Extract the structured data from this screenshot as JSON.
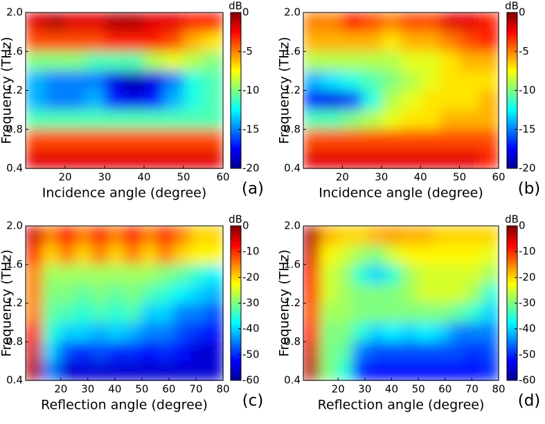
{
  "chart_data": [
    {
      "type": "heatmap",
      "colormap": "jet",
      "x_label": "Incidence angle (degree)",
      "y_label": "Frequency (THz)",
      "panel_label": "(a)",
      "colorbar_label": "dB",
      "xlim": [
        10,
        60
      ],
      "xticks": [
        20,
        30,
        40,
        50,
        60
      ],
      "ylim": [
        0.4,
        2.0
      ],
      "yticks": [
        {
          "value": 2.0,
          "label": "2.0"
        },
        1.6,
        1.2,
        0.8,
        0.4
      ],
      "zlim": [
        -20,
        0
      ],
      "zticks": [
        0,
        -5,
        -10,
        -15,
        -20
      ],
      "z": [
        [
          -2,
          -1,
          -2,
          -2,
          -1,
          -1,
          -2,
          -2,
          -3,
          -3
        ],
        [
          -4,
          -4,
          -4,
          -4,
          -3,
          -3,
          -3,
          -4,
          -6,
          -7
        ],
        [
          -10,
          -10,
          -10,
          -11,
          -11,
          -11,
          -9,
          -8,
          -9,
          -10
        ],
        [
          -14,
          -15,
          -15,
          -15,
          -18,
          -19,
          -18,
          -15,
          -12,
          -11
        ],
        [
          -14,
          -15,
          -15,
          -14,
          -17,
          -18,
          -17,
          -14,
          -12,
          -11
        ],
        [
          -11,
          -11,
          -11,
          -11,
          -11,
          -11,
          -11,
          -11,
          -11,
          -11
        ],
        [
          -4,
          -4,
          -4,
          -4,
          -4,
          -4,
          -4,
          -4,
          -4,
          -4
        ],
        [
          -2,
          -2,
          -2,
          -2,
          -2,
          -2,
          -2,
          -2,
          -2,
          -2
        ]
      ]
    },
    {
      "type": "heatmap",
      "colormap": "jet",
      "x_label": "Incidence angle (degree)",
      "y_label": "Frequency (THz)",
      "panel_label": "(b)",
      "colorbar_label": "dB",
      "xlim": [
        10,
        60
      ],
      "xticks": [
        20,
        30,
        40,
        50,
        60
      ],
      "ylim": [
        0.4,
        2.0
      ],
      "yticks": [
        {
          "value": 2.0,
          "label": "2.0"
        },
        1.6,
        1.2,
        0.8,
        0.4
      ],
      "zlim": [
        -20,
        0
      ],
      "zticks": [
        0,
        -5,
        -10,
        -15,
        -20
      ],
      "z": [
        [
          -5,
          -5,
          -3,
          -4,
          -5,
          -4,
          -4,
          -2,
          -2,
          -3
        ],
        [
          -6,
          -6,
          -6,
          -6,
          -7,
          -6,
          -6,
          -5,
          -4,
          -3
        ],
        [
          -9,
          -9,
          -9,
          -9,
          -9,
          -8,
          -8,
          -7,
          -6,
          -6
        ],
        [
          -14,
          -13,
          -12,
          -11,
          -10,
          -9,
          -8,
          -7,
          -7,
          -7
        ],
        [
          -17,
          -18,
          -16,
          -12,
          -9,
          -8,
          -7,
          -7,
          -7,
          -6
        ],
        [
          -11,
          -11,
          -10,
          -9,
          -8,
          -7,
          -7,
          -6,
          -6,
          -6
        ],
        [
          -4,
          -4,
          -4,
          -4,
          -4,
          -4,
          -4,
          -4,
          -4,
          -4
        ],
        [
          -2,
          -2,
          -2,
          -2,
          -2,
          -2,
          -2,
          -2,
          -2,
          -3
        ]
      ]
    },
    {
      "type": "heatmap",
      "colormap": "jet",
      "x_label": "Reflection angle (degree)",
      "y_label": "Frequency (THz)",
      "panel_label": "(c)",
      "colorbar_label": "dB",
      "xlim": [
        7,
        80
      ],
      "xticks": [
        20,
        30,
        40,
        50,
        60,
        70,
        80
      ],
      "ylim": [
        0.4,
        2.0
      ],
      "yticks": [
        {
          "value": 2.0,
          "label": "2.0"
        },
        1.6,
        1.2,
        0.8,
        0.4
      ],
      "zlim": [
        -60,
        0
      ],
      "zticks": [
        0,
        -10,
        -20,
        -30,
        -40,
        -50,
        -60
      ],
      "z": [
        [
          -5,
          -15,
          -8,
          -15,
          -10,
          -15,
          -8,
          -15,
          -10,
          -15,
          -20,
          -20
        ],
        [
          -10,
          -20,
          -15,
          -20,
          -15,
          -20,
          -15,
          -20,
          -15,
          -20,
          -22,
          -22
        ],
        [
          -15,
          -28,
          -28,
          -28,
          -28,
          -28,
          -28,
          -28,
          -30,
          -32,
          -35,
          -38
        ],
        [
          -15,
          -30,
          -30,
          -32,
          -30,
          -32,
          -30,
          -33,
          -35,
          -38,
          -40,
          -42
        ],
        [
          -15,
          -32,
          -33,
          -35,
          -33,
          -35,
          -33,
          -40,
          -40,
          -45,
          -45,
          -48
        ],
        [
          -8,
          -35,
          -40,
          -40,
          -42,
          -40,
          -42,
          -45,
          -45,
          -48,
          -50,
          -52
        ],
        [
          -5,
          -40,
          -48,
          -50,
          -48,
          -50,
          -50,
          -52,
          -50,
          -52,
          -55,
          -55
        ],
        [
          -3,
          -45,
          -55,
          -55,
          -55,
          -55,
          -55,
          -55,
          -55,
          -55,
          -55,
          -55
        ]
      ]
    },
    {
      "type": "heatmap",
      "colormap": "jet",
      "x_label": "Reflection angle (degree)",
      "y_label": "Frequency (THz)",
      "panel_label": "(d)",
      "colorbar_label": "dB",
      "xlim": [
        7,
        80
      ],
      "xticks": [
        20,
        30,
        40,
        50,
        60,
        70,
        80
      ],
      "ylim": [
        0.4,
        2.0
      ],
      "yticks": [
        {
          "value": 2.0,
          "label": "2.0"
        },
        1.6,
        1.2,
        0.8,
        0.4
      ],
      "zlim": [
        -60,
        0
      ],
      "zticks": [
        0,
        -10,
        -20,
        -30,
        -40,
        -50,
        -60
      ],
      "z": [
        [
          -3,
          -18,
          -20,
          -20,
          -18,
          -17,
          -18,
          -18,
          -20,
          -20,
          -20,
          -20
        ],
        [
          -5,
          -22,
          -25,
          -28,
          -30,
          -25,
          -22,
          -22,
          -22,
          -22,
          -22,
          -24
        ],
        [
          -8,
          -25,
          -28,
          -35,
          -40,
          -35,
          -28,
          -25,
          -25,
          -25,
          -25,
          -28
        ],
        [
          -10,
          -25,
          -28,
          -30,
          -30,
          -30,
          -28,
          -25,
          -25,
          -25,
          -28,
          -35
        ],
        [
          -12,
          -28,
          -28,
          -30,
          -30,
          -30,
          -30,
          -30,
          -30,
          -32,
          -35,
          -40
        ],
        [
          -8,
          -30,
          -30,
          -35,
          -40,
          -38,
          -40,
          -38,
          -40,
          -45,
          -45,
          -45
        ],
        [
          -5,
          -30,
          -32,
          -45,
          -48,
          -48,
          -48,
          -48,
          -48,
          -48,
          -50,
          -48
        ],
        [
          -3,
          -30,
          -35,
          -50,
          -52,
          -52,
          -52,
          -52,
          -52,
          -52,
          -52,
          -50
        ]
      ]
    }
  ]
}
